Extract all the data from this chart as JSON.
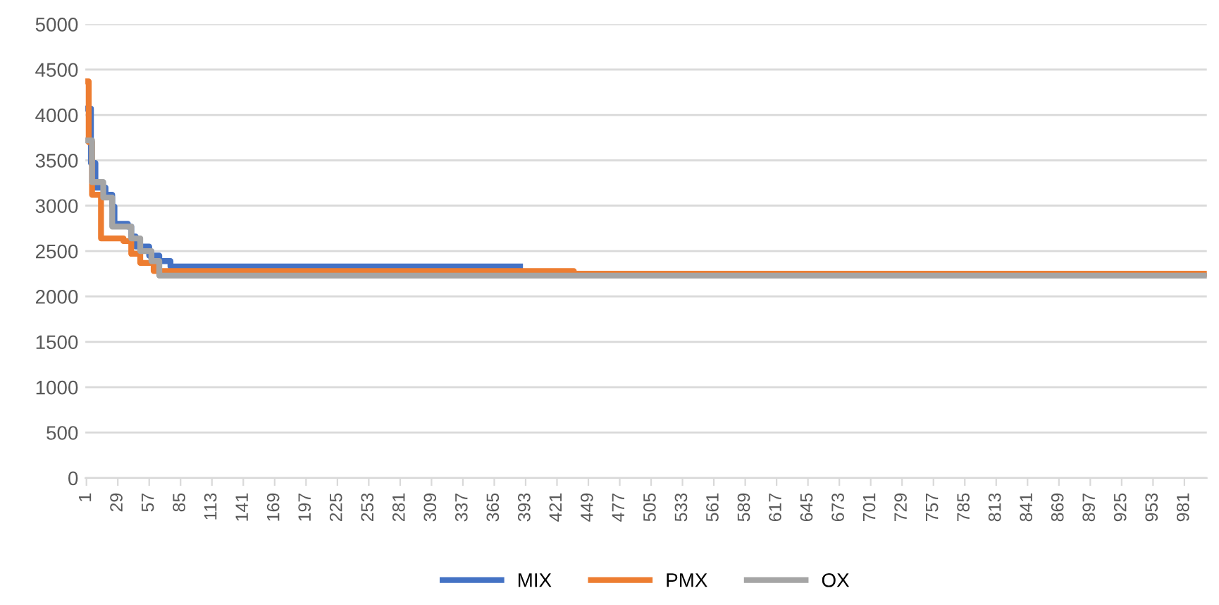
{
  "chart_data": {
    "type": "line",
    "xlim": [
      0,
      1001
    ],
    "xticks": [
      1,
      29,
      57,
      85,
      113,
      141,
      169,
      197,
      225,
      253,
      281,
      309,
      337,
      365,
      393,
      421,
      449,
      477,
      505,
      533,
      561,
      589,
      617,
      645,
      673,
      701,
      729,
      757,
      785,
      813,
      841,
      869,
      897,
      925,
      953,
      981
    ],
    "ylim": [
      0,
      5000
    ],
    "yticks": [
      0,
      500,
      1000,
      1500,
      2000,
      2500,
      3000,
      3500,
      4000,
      4500,
      5000
    ],
    "grid": "y",
    "legend": "bottom",
    "line_style": "solid",
    "marker": "none",
    "series": [
      {
        "name": "MIX",
        "color": "#4472c4",
        "x": [
          1,
          5,
          5,
          9,
          9,
          18,
          18,
          24,
          24,
          26,
          26,
          38,
          38,
          41,
          41,
          45,
          45,
          57,
          57,
          66,
          66,
          76,
          76,
          388
        ],
        "values": [
          4070,
          4070,
          3470,
          3470,
          3200,
          3200,
          3120,
          3120,
          2990,
          2990,
          2800,
          2800,
          2770,
          2770,
          2660,
          2660,
          2550,
          2550,
          2450,
          2450,
          2390,
          2390,
          2330,
          2330
        ]
      },
      {
        "name": "PMX",
        "color": "#ed7d31",
        "x": [
          1,
          3,
          3,
          6,
          6,
          14,
          14,
          34,
          34,
          41,
          41,
          49,
          49,
          61,
          61,
          436,
          436,
          1000
        ],
        "values": [
          4370,
          4370,
          3700,
          3700,
          3120,
          3120,
          2640,
          2640,
          2610,
          2610,
          2470,
          2470,
          2370,
          2370,
          2280,
          2280,
          2250,
          2250
        ]
      },
      {
        "name": "OX",
        "color": "#a5a5a5",
        "x": [
          1,
          6,
          6,
          16,
          16,
          24,
          24,
          41,
          41,
          49,
          49,
          59,
          59,
          66,
          66,
          1000
        ],
        "values": [
          3720,
          3720,
          3260,
          3260,
          3090,
          3090,
          2770,
          2770,
          2640,
          2640,
          2500,
          2500,
          2390,
          2390,
          2230,
          2230
        ]
      }
    ]
  }
}
